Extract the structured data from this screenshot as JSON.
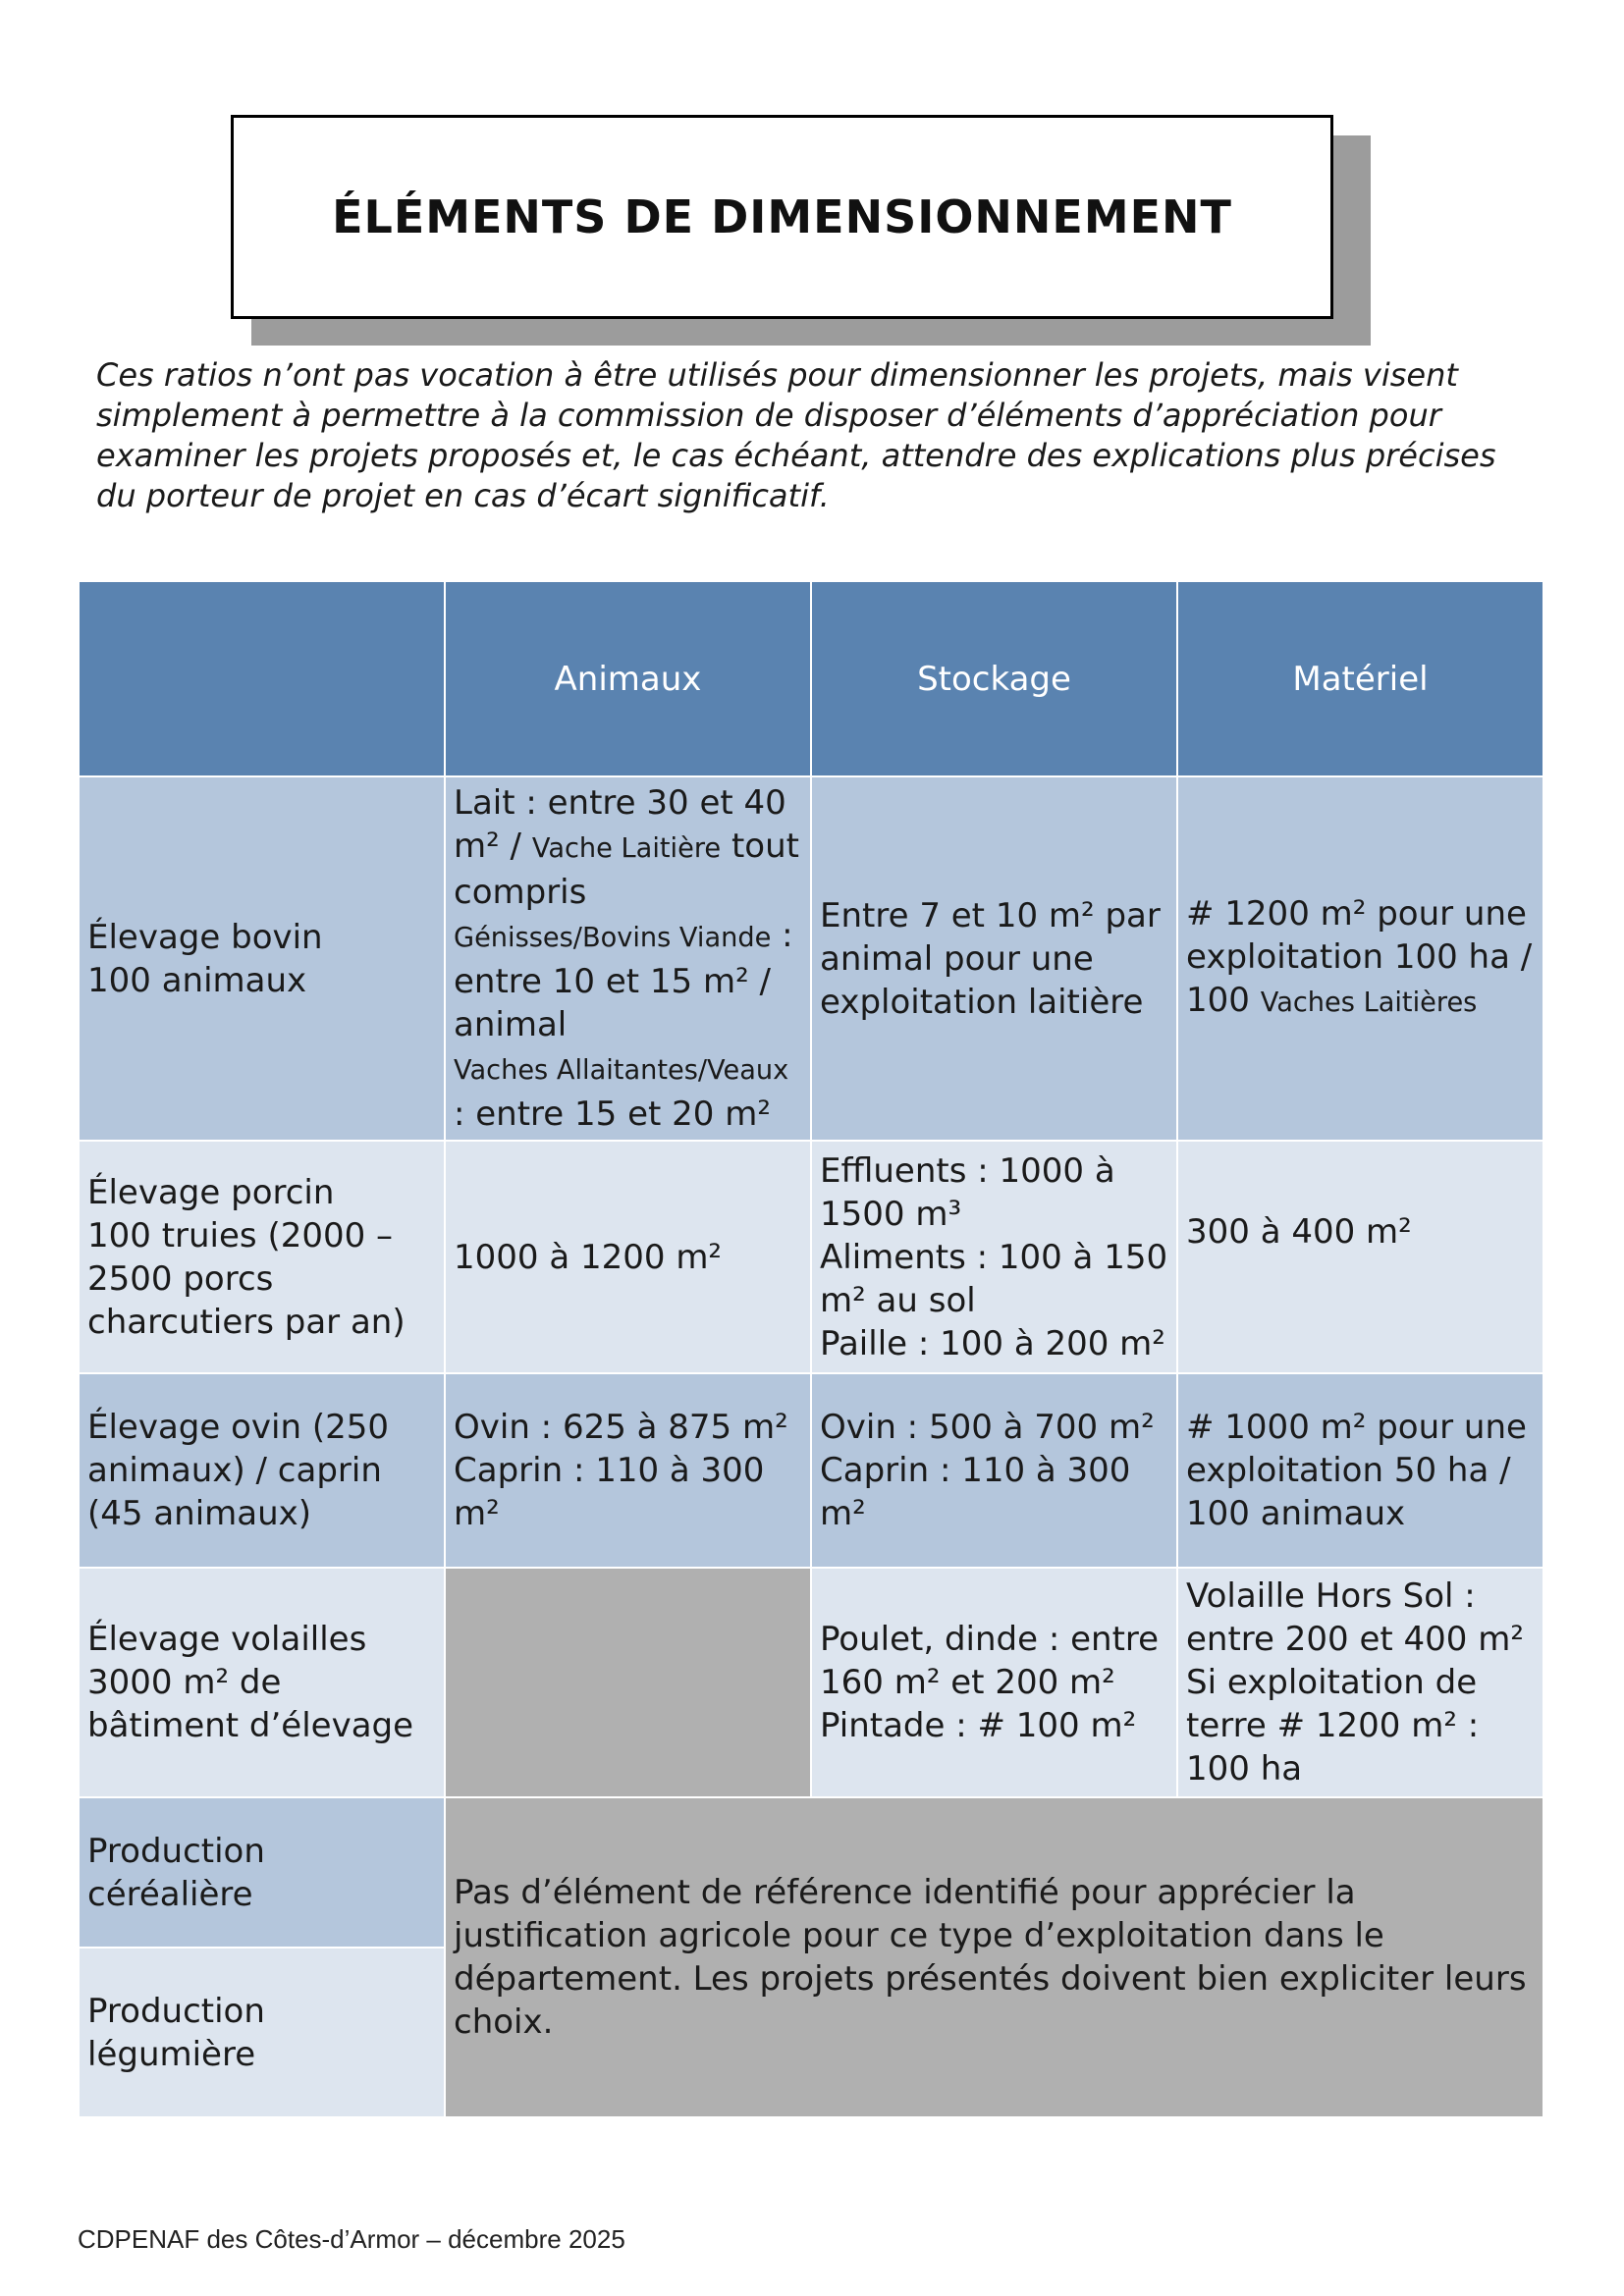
{
  "title": "ÉLÉMENTS DE DIMENSIONNEMENT",
  "intro": "Ces ratios n’ont pas vocation à être utilisés pour dimensionner les projets, mais visent simplement à permettre à la commission de disposer d’éléments d’appréciation pour examiner les projets proposés et, le cas échéant, attendre des explications plus précises du porteur de projet en cas d’écart significatif.",
  "table": {
    "headers": [
      "",
      "Animaux",
      "Stockage",
      "Matériel"
    ],
    "rows": [
      {
        "label": "Élevage bovin\n100 animaux",
        "animaux": {
          "p1": "Lait : entre 30 et 40 m² / ",
          "p2": "Vache Laitière",
          "p3": " tout compris\n",
          "p4": "Génisses/Bovins Viande",
          "p5": " : entre 10 et 15 m² / animal\n",
          "p6": "Vaches Allaitantes/Veaux",
          "p7": " : entre 15 et 20 m²"
        },
        "stockage": "Entre 7 et 10 m² par animal pour une exploitation laitière",
        "materiel": {
          "p1": "# 1200 m² pour une exploitation 100 ha / 100 ",
          "p2": "Vaches Laitières"
        }
      },
      {
        "label": "Élevage porcin\n100 truies (2000 – 2500 porcs charcutiers par an)",
        "animaux": "1000 à 1200 m²",
        "stockage": "Effluents : 1000 à 1500 m³\nAliments : 100 à 150 m² au sol\nPaille : 100 à 200 m²",
        "materiel": "300 à 400 m²"
      },
      {
        "label": "Élevage ovin (250 animaux) / caprin (45 animaux)",
        "animaux": "Ovin : 625 à 875 m²\nCaprin : 110 à 300 m²",
        "stockage": "Ovin : 500 à 700 m²\nCaprin : 110 à 300 m²",
        "materiel": "# 1000 m² pour une exploitation 50 ha / 100 animaux"
      },
      {
        "label": "Élevage volailles\n3000 m² de bâtiment d’élevage",
        "animaux": "",
        "stockage": "Poulet, dinde : entre 160 m² et 200 m²\nPintade : # 100 m²",
        "materiel": "Volaille Hors Sol : entre 200 et 400 m²\nSi exploitation de terre # 1200 m² : 100 ha"
      }
    ],
    "crop_rows": {
      "labels": [
        "Production céréalière",
        "Production légumière"
      ],
      "note": "Pas d’élément de référence identifié pour apprécier la justification agricole pour ce type d’exploitation dans le département. Les projets présentés doivent bien expliciter leurs choix."
    }
  },
  "footer": "CDPENAF des Côtes-d’Armor – décembre 2025",
  "colors": {
    "header": "#5a83b0",
    "row_dark": "#b4c6dc",
    "row_light": "#dde5ef",
    "na_cell": "#b0b0b0",
    "shadow": "#9c9c9c"
  }
}
